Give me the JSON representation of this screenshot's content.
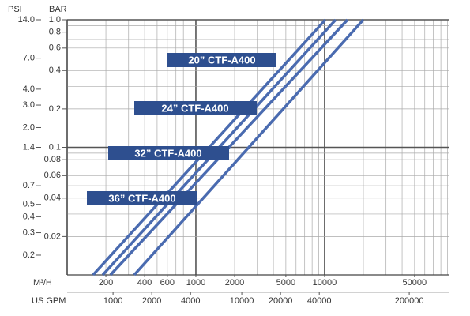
{
  "chart_data": {
    "type": "line",
    "y_title": "BAR",
    "y2_title": "PSI",
    "x_title": "M³/H",
    "x2_title": "US GPM",
    "log_x": true,
    "log_y": true,
    "grid": true,
    "xlim": [
      100,
      92000
    ],
    "xticks": [
      200,
      400,
      600,
      1000,
      2000,
      5000,
      10000,
      50000
    ],
    "x2lim": [
      440,
      404800
    ],
    "x2ticks": [
      1000,
      2000,
      4000,
      10000,
      20000,
      40000,
      200000
    ],
    "ylim": [
      0.01,
      1
    ],
    "yticks": [
      {
        "value": 1,
        "label": "1.0"
      },
      0.8,
      0.6,
      0.4,
      0.2,
      0.1,
      0.08,
      0.06,
      0.04,
      0.02
    ],
    "y2lim": [
      0.14,
      14
    ],
    "y2ticks": [
      {
        "value": 14,
        "label": "14.0"
      },
      {
        "value": 7,
        "label": "7.0"
      },
      {
        "value": 4,
        "label": "4.0"
      },
      {
        "value": 3,
        "label": "3.0"
      },
      {
        "value": 2,
        "label": "2.0"
      },
      1.4,
      0.7,
      0.5,
      0.4,
      0.3,
      0.2
    ],
    "minor_xticks": [
      100,
      200,
      300,
      400,
      500,
      600,
      700,
      800,
      900,
      1000,
      2000,
      3000,
      4000,
      5000,
      6000,
      7000,
      8000,
      9000,
      10000,
      20000,
      30000,
      40000,
      50000,
      60000,
      70000,
      80000,
      90000
    ],
    "minor_yticks": [
      0.02,
      0.03,
      0.04,
      0.05,
      0.06,
      0.07,
      0.08,
      0.09,
      0.1,
      0.2,
      0.3,
      0.4,
      0.5,
      0.6,
      0.7,
      0.8,
      0.9,
      1
    ],
    "series": [
      {
        "name": "20” CTF-A400",
        "color": "#4a6bb0",
        "x": [
          159,
          10140
        ],
        "values": [
          0.01,
          1
        ]
      },
      {
        "name": "24” CTF-A400",
        "color": "#4a6bb0",
        "x": [
          189,
          12190
        ],
        "values": [
          0.01,
          1
        ]
      },
      {
        "name": "32” CTF-A400",
        "color": "#4a6bb0",
        "x": [
          217,
          15060
        ],
        "values": [
          0.01,
          1
        ]
      },
      {
        "name": "36” CTF-A400",
        "color": "#4a6bb0",
        "x": [
          332,
          19980
        ],
        "values": [
          0.01,
          1
        ]
      }
    ]
  }
}
